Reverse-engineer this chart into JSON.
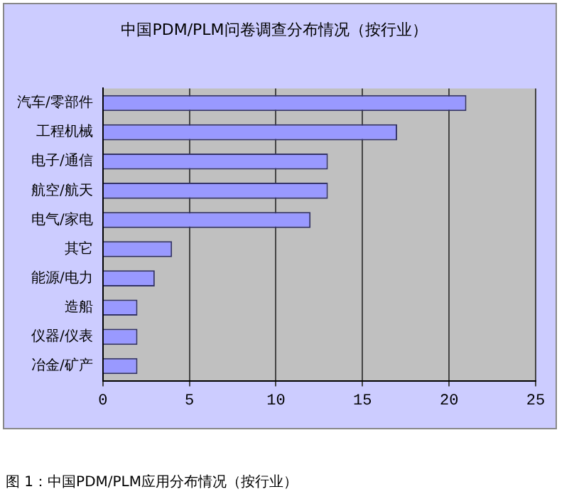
{
  "chart_data": {
    "type": "bar",
    "orientation": "horizontal",
    "title": "中国PDM/PLM问卷调查分布情况（按行业）",
    "categories": [
      "汽车/零部件",
      "工程机械",
      "电子/通信",
      "航空/航天",
      "电气/家电",
      "其它",
      "能源/电力",
      "造船",
      "仪器/仪表",
      "冶金/矿产"
    ],
    "values": [
      21,
      17,
      13,
      13,
      12,
      4,
      3,
      2,
      2,
      2
    ],
    "color": "#9999ff",
    "xlim": [
      0,
      25
    ],
    "xticks": [
      0,
      5,
      10,
      15,
      20,
      25
    ],
    "grid": "x",
    "annotations": [
      "图 1：中国PDM/PLM应用分布情况（按行业）"
    ]
  }
}
